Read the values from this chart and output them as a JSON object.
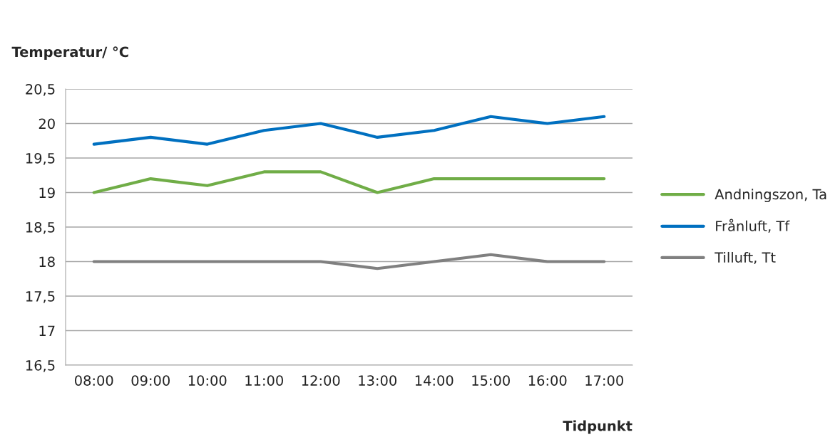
{
  "chart_data": {
    "type": "line",
    "xlabel": "Tidpunkt",
    "ylabel": "Temperatur/ °C",
    "categories": [
      "08:00",
      "09:00",
      "10:00",
      "11:00",
      "12:00",
      "13:00",
      "14:00",
      "15:00",
      "16:00",
      "17:00"
    ],
    "series": [
      {
        "name": "Andningszon, Ta",
        "color": "#70ad47",
        "values": [
          19.0,
          19.2,
          19.1,
          19.3,
          19.3,
          19.0,
          19.2,
          19.2,
          19.2,
          19.2
        ]
      },
      {
        "name": "Frånluft, Tf",
        "color": "#0070c0",
        "values": [
          19.7,
          19.8,
          19.7,
          19.9,
          20.0,
          19.8,
          19.9,
          20.1,
          20.0,
          20.1
        ]
      },
      {
        "name": "Tilluft, Tt",
        "color": "#808080",
        "values": [
          18.0,
          18.0,
          18.0,
          18.0,
          18.0,
          17.9,
          18.0,
          18.1,
          18.0,
          18.0
        ]
      }
    ],
    "ylim": [
      16.5,
      20.5
    ],
    "yticks": [
      {
        "value": 16.5,
        "label": "16,5"
      },
      17,
      {
        "value": 17.5,
        "label": "17,5"
      },
      18,
      {
        "value": 18.5,
        "label": "18,5"
      },
      19,
      {
        "value": 19.5,
        "label": "19,5"
      },
      20,
      {
        "value": 20.5,
        "label": "20,5"
      }
    ],
    "grid": "y",
    "legend": "right",
    "marker": "none",
    "line_style": "solid"
  }
}
